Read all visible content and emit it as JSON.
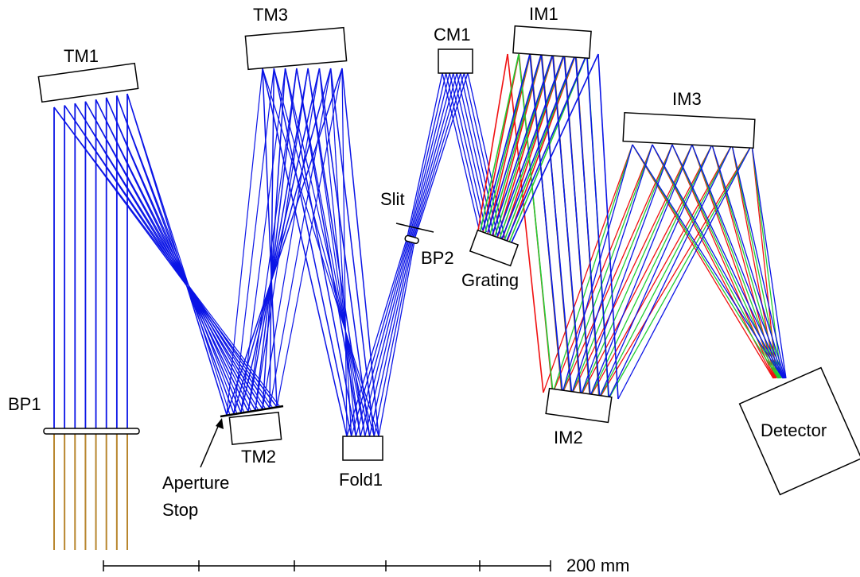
{
  "components": {
    "tm1": "TM1",
    "tm2": "TM2",
    "tm3": "TM3",
    "cm1": "CM1",
    "im1": "IM1",
    "im2": "IM2",
    "im3": "IM3",
    "slit": "Slit",
    "bp1": "BP1",
    "bp2": "BP2",
    "grating": "Grating",
    "fold1": "Fold1",
    "detector": "Detector",
    "aperture_stop": [
      "Aperture",
      "Stop"
    ]
  },
  "scale_bar": {
    "label": "200 mm"
  }
}
